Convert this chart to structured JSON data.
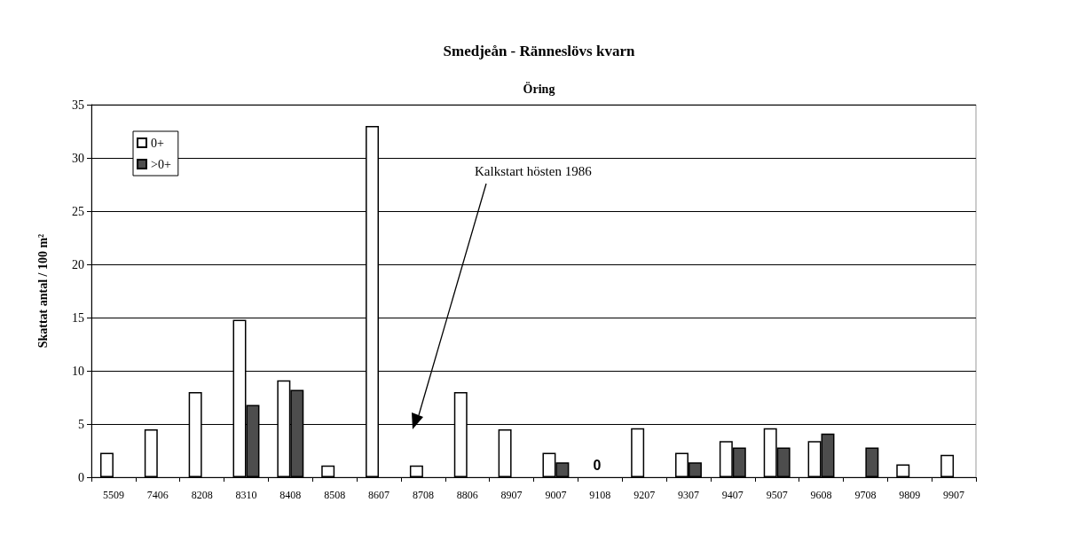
{
  "chart_data": {
    "type": "bar",
    "title": "Smedjeån - Ränneslövs kvarn",
    "subtitle": "Öring",
    "ylabel": "Skattat antal / 100 m²",
    "categories": [
      "5509",
      "7406",
      "8208",
      "8310",
      "8408",
      "8508",
      "8607",
      "8708",
      "8806",
      "8907",
      "9007",
      "9108",
      "9207",
      "9307",
      "9407",
      "9507",
      "9608",
      "9708",
      "9809",
      "9907"
    ],
    "series": [
      {
        "name": "0+",
        "color": "#ffffff",
        "values": [
          2.3,
          4.5,
          8.0,
          14.8,
          9.1,
          1.1,
          33,
          1.1,
          8.0,
          4.5,
          2.3,
          null,
          4.6,
          2.3,
          3.4,
          4.6,
          3.4,
          null,
          1.2,
          2.1
        ]
      },
      {
        "name": ">0+",
        "color": "#4d4d4d",
        "values": [
          null,
          null,
          null,
          6.8,
          8.2,
          null,
          null,
          null,
          null,
          null,
          1.4,
          null,
          null,
          1.4,
          2.8,
          2.8,
          4.1,
          2.8,
          null,
          null
        ]
      }
    ],
    "annotations": [
      "Kalkstart hösten 1986",
      "0"
    ],
    "ylim": [
      0,
      35
    ],
    "yticks": [
      0,
      5,
      10,
      15,
      20,
      25,
      30,
      35
    ],
    "grid": "y",
    "legend": "top left"
  }
}
